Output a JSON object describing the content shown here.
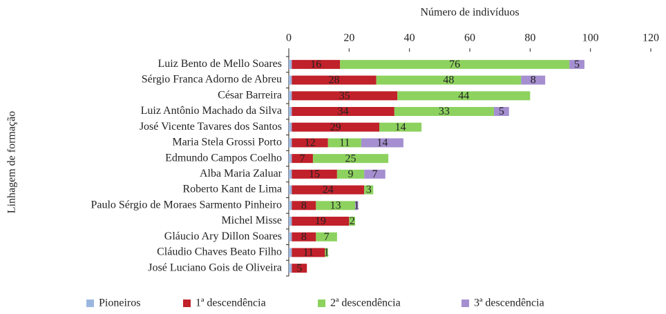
{
  "chart_data": {
    "type": "stacked-barh",
    "x_label": "Número de indivíduos",
    "y_label": "Linhagem de formação",
    "categories": [
      "Luiz Bento de Mello Soares",
      "Sérgio Franca Adorno de Abreu",
      "César Barreira",
      "Luiz Antônio Machado da Silva",
      "José Vicente Tavares dos Santos",
      "Maria Stela Grossi Porto",
      "Edmundo Campos Coelho",
      "Alba Maria Zaluar",
      "Roberto Kant de Lima",
      "Paulo Sérgio de Moraes Sarmento Pinheiro",
      "Michel Misse",
      "Gláucio Ary Dillon Soares",
      "Cláudio Chaves Beato Filho",
      "José Luciano Gois de Oliveira"
    ],
    "series": [
      {
        "name": "Pioneiros",
        "color": "#9bb7e0",
        "values": [
          1,
          1,
          1,
          1,
          1,
          1,
          1,
          1,
          1,
          1,
          1,
          1,
          1,
          1
        ],
        "show_labels": false
      },
      {
        "name": "1ª descendência",
        "color": "#c0212a",
        "values": [
          16,
          28,
          35,
          34,
          29,
          12,
          7,
          15,
          24,
          8,
          19,
          8,
          11,
          5
        ],
        "show_labels": true
      },
      {
        "name": "2ª descendência",
        "color": "#8dd25f",
        "values": [
          76,
          48,
          44,
          33,
          14,
          11,
          25,
          9,
          3,
          13,
          2,
          7,
          1,
          null
        ],
        "show_labels": true
      },
      {
        "name": "3ª descendência",
        "color": "#a58fd0",
        "values": [
          5,
          8,
          null,
          5,
          null,
          14,
          null,
          7,
          null,
          1,
          null,
          null,
          null,
          null
        ],
        "show_labels": true
      }
    ],
    "xlim": [
      0,
      120
    ],
    "xticks": [
      0,
      20,
      40,
      60,
      80,
      100,
      120
    ],
    "legend": "bottom"
  }
}
